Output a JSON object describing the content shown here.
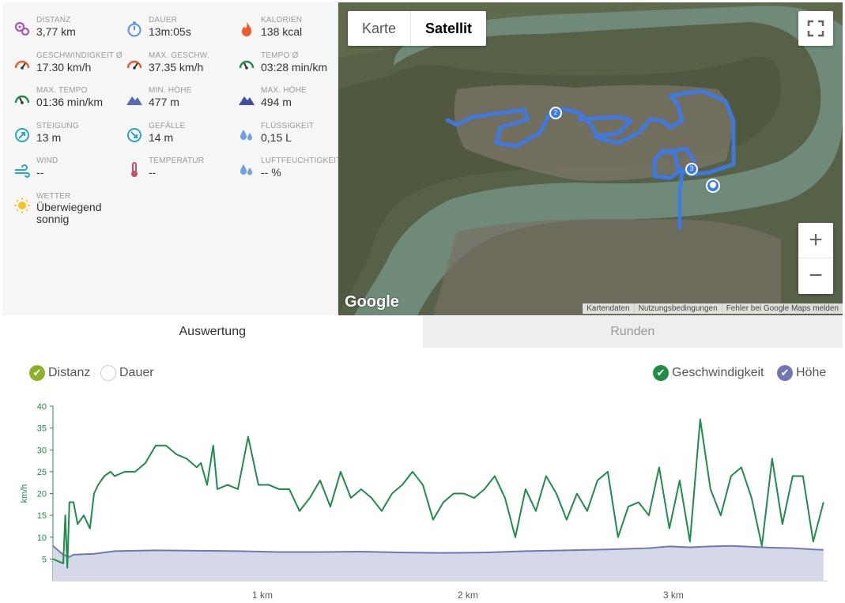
{
  "stats": [
    {
      "label": "DISTANZ",
      "value": "3,77 km",
      "icon": "distance-icon",
      "color": "#a25bb6"
    },
    {
      "label": "DAUER",
      "value": "13m:05s",
      "icon": "stopwatch-icon",
      "color": "#5b8ee6"
    },
    {
      "label": "KALORIEN",
      "value": "138 kcal",
      "icon": "flame-icon",
      "color": "#f05a2a"
    },
    {
      "label": "GESCHWINDIGKEIT Ø",
      "value": "17.30 km/h",
      "icon": "speedometer-icon",
      "color": "#f05a2a"
    },
    {
      "label": "MAX. GESCHW.",
      "value": "37.35 km/h",
      "icon": "speedometer-icon",
      "color": "#f05a2a"
    },
    {
      "label": "TEMPO Ø",
      "value": "03:28 min/km",
      "icon": "pace-icon",
      "color": "#1e8d48"
    },
    {
      "label": "MAX. TEMPO",
      "value": "01:36 min/km",
      "icon": "pace-icon",
      "color": "#1e8d48"
    },
    {
      "label": "MIN. HÖHE",
      "value": "477 m",
      "icon": "mountain-icon",
      "color": "#5a6bb5"
    },
    {
      "label": "MAX. HÖHE",
      "value": "494 m",
      "icon": "mountain-icon",
      "color": "#3f4ea0"
    },
    {
      "label": "STEIGUNG",
      "value": "13 m",
      "icon": "ascent-icon",
      "color": "#2aa4c8"
    },
    {
      "label": "GEFÄLLE",
      "value": "14 m",
      "icon": "descent-icon",
      "color": "#2aa4c8"
    },
    {
      "label": "FLÜSSIGKEIT",
      "value": "0,15 L",
      "icon": "drops-icon",
      "color": "#6fa1e6"
    },
    {
      "label": "WIND",
      "value": "--",
      "icon": "wind-icon",
      "color": "#2aa4c8"
    },
    {
      "label": "TEMPERATUR",
      "value": "--",
      "icon": "thermometer-icon",
      "color": "#c8506a"
    },
    {
      "label": "LUFTFEUCHTIGKEIT",
      "value": "-- %",
      "icon": "humidity-icon",
      "color": "#6fa1e6"
    },
    {
      "label": "WETTER",
      "value": "Überwiegend sonnig",
      "icon": "sun-icon",
      "color": "#f3c41f"
    }
  ],
  "map": {
    "type_karte": "Karte",
    "type_satellit": "Satellit",
    "zoom_in": "+",
    "zoom_out": "−",
    "logo": "Google",
    "attribution": [
      "Kartendaten",
      "Nutzungsbedingungen",
      "Fehler bei Google Maps melden"
    ],
    "markers": [
      "2",
      "3"
    ]
  },
  "tabs": {
    "evaluation": "Auswertung",
    "laps": "Runden"
  },
  "toggles": {
    "distance": "Distanz",
    "duration": "Dauer",
    "speed": "Geschwindigkeit",
    "altitude": "Höhe"
  },
  "colors": {
    "speed": "#1e8d48",
    "altitude": "#6f78b5",
    "altitude_fill": "#d4d8e8",
    "route": "#3b7bf0"
  },
  "chart_data": {
    "type": "line",
    "ylabel": "km/h",
    "ylim": [
      0,
      40
    ],
    "yticks": [
      5,
      10,
      15,
      20,
      25,
      30,
      35,
      40
    ],
    "xlim": [
      0,
      3.77
    ],
    "xticks": [
      1,
      2,
      3
    ],
    "xtick_labels": [
      "1 km",
      "2 km",
      "3 km"
    ],
    "series": [
      {
        "name": "Geschwindigkeit",
        "x": [
          0.0,
          0.05,
          0.06,
          0.07,
          0.08,
          0.1,
          0.12,
          0.15,
          0.18,
          0.2,
          0.22,
          0.25,
          0.28,
          0.3,
          0.35,
          0.4,
          0.45,
          0.5,
          0.55,
          0.6,
          0.65,
          0.7,
          0.72,
          0.75,
          0.78,
          0.8,
          0.85,
          0.9,
          0.95,
          1.0,
          1.05,
          1.1,
          1.15,
          1.2,
          1.25,
          1.3,
          1.35,
          1.4,
          1.45,
          1.5,
          1.55,
          1.6,
          1.65,
          1.7,
          1.75,
          1.8,
          1.85,
          1.9,
          1.95,
          2.0,
          2.05,
          2.1,
          2.15,
          2.2,
          2.25,
          2.3,
          2.35,
          2.4,
          2.45,
          2.5,
          2.55,
          2.6,
          2.65,
          2.7,
          2.75,
          2.8,
          2.85,
          2.9,
          2.95,
          3.0,
          3.05,
          3.1,
          3.15,
          3.2,
          3.25,
          3.3,
          3.35,
          3.4,
          3.45,
          3.5,
          3.55,
          3.6,
          3.65,
          3.7,
          3.75
        ],
        "values": [
          5,
          4,
          15,
          3,
          18,
          18,
          13,
          15,
          12,
          20,
          22,
          24,
          25,
          24,
          25,
          25,
          27,
          31,
          31,
          29,
          28,
          26,
          27,
          22,
          31,
          21,
          22,
          21,
          33,
          22,
          22,
          21,
          21,
          16,
          19,
          23,
          17,
          25,
          19,
          21,
          19,
          16,
          20,
          22,
          25,
          22,
          14,
          18,
          20,
          20,
          19,
          21,
          24,
          19,
          10,
          21,
          16,
          24,
          20,
          14,
          20,
          16,
          23,
          25,
          10,
          17,
          18,
          15,
          26,
          12,
          23,
          9,
          37,
          21,
          15,
          24,
          26,
          19,
          8,
          28,
          13,
          24,
          24,
          9,
          18
        ]
      },
      {
        "name": "Höhe",
        "x": [
          0.0,
          0.05,
          0.08,
          0.1,
          0.2,
          0.3,
          0.5,
          0.7,
          0.9,
          1.1,
          1.3,
          1.5,
          1.7,
          1.9,
          2.1,
          2.3,
          2.5,
          2.7,
          2.9,
          3.0,
          3.1,
          3.2,
          3.3,
          3.4,
          3.5,
          3.6,
          3.7,
          3.75
        ],
        "values": [
          8,
          6,
          5.5,
          6,
          6.2,
          6.8,
          7,
          6.9,
          6.8,
          6.6,
          6.6,
          6.7,
          6.5,
          6.4,
          6.5,
          6.8,
          7,
          7.2,
          7.5,
          7.9,
          7.7,
          7.9,
          8,
          7.8,
          7.6,
          7.5,
          7.2,
          7.1
        ]
      }
    ],
    "toggles": [
      "Distanz",
      "Dauer"
    ]
  }
}
